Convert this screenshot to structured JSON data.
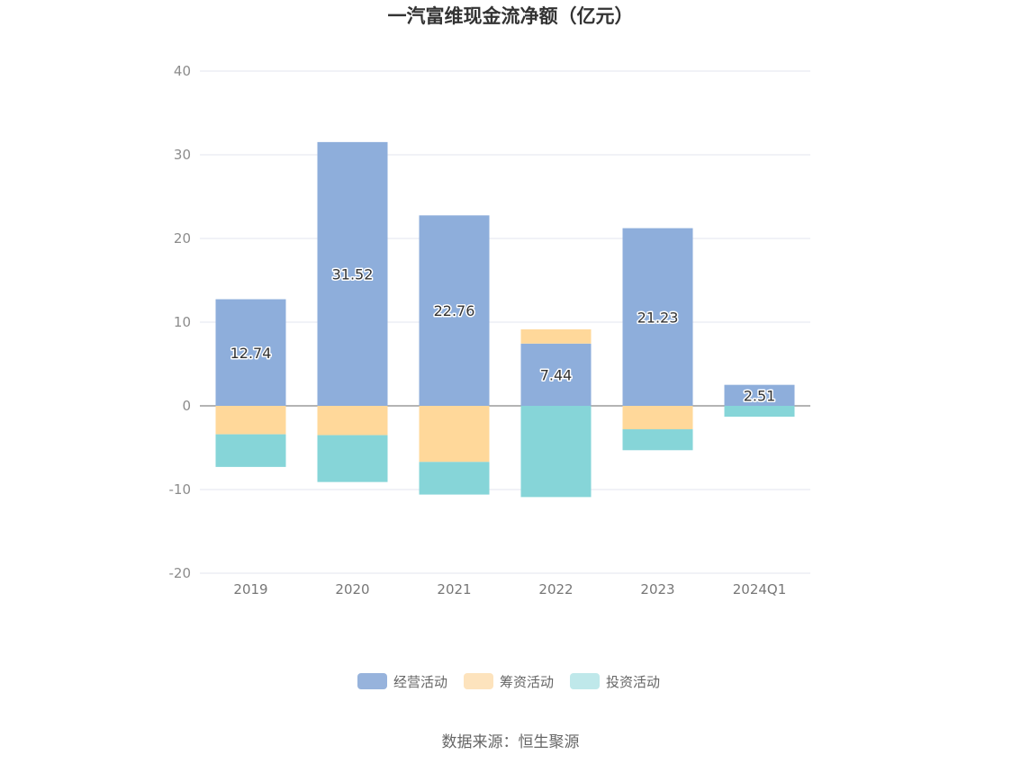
{
  "chart_data": {
    "type": "bar",
    "stacked": true,
    "title": "一汽富维现金流净额（亿元）",
    "categories": [
      "2019",
      "2020",
      "2021",
      "2022",
      "2023",
      "2024Q1"
    ],
    "series": [
      {
        "name": "经营活动",
        "color": "#8eaedb",
        "values": [
          12.74,
          31.52,
          22.76,
          7.44,
          21.23,
          2.51
        ],
        "labels_shown": true
      },
      {
        "name": "筹资活动",
        "color": "#ffd89a",
        "values": [
          -3.4,
          -3.5,
          -6.7,
          1.7,
          -2.8,
          0
        ],
        "labels_shown": false
      },
      {
        "name": "投资活动",
        "color": "#86d5d8",
        "values": [
          -3.9,
          -5.6,
          -3.9,
          -10.9,
          -2.5,
          -1.3
        ],
        "labels_shown": false
      }
    ],
    "ylim": [
      -20,
      40
    ],
    "yticks": [
      40,
      30,
      20,
      10,
      0,
      -10,
      -20
    ],
    "grid": true,
    "legend_position": "bottom"
  },
  "legend_colors": [
    "#97b3dc",
    "#fde3bd",
    "#bfe8ea"
  ],
  "source": "数据来源：恒生聚源"
}
